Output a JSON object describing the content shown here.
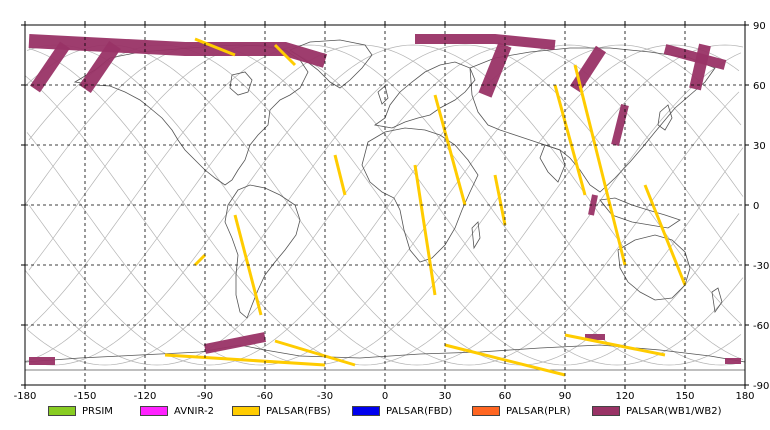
{
  "map": {
    "lon_ticks": [
      "-180",
      "-150",
      "-120",
      "-90",
      "-60",
      "-30",
      "0",
      "30",
      "60",
      "90",
      "120",
      "150",
      "180"
    ],
    "lat_ticks": [
      "90",
      "60",
      "30",
      "0",
      "-30",
      "-60",
      "-90"
    ],
    "lon_range": [
      -180,
      180
    ],
    "lat_range": [
      -90,
      90
    ],
    "grid": true,
    "colors": {
      "coastline": "#555555",
      "orbit_tracks": "#b4b4b4",
      "grid": "#000000",
      "frame": "#000000"
    }
  },
  "legend": {
    "items": [
      {
        "label": "PRSIM",
        "color": "#88cc22"
      },
      {
        "label": "AVNIR-2",
        "color": "#ff22ff"
      },
      {
        "label": "PALSAR(FBS)",
        "color": "#ffcc00"
      },
      {
        "label": "PALSAR(FBD)",
        "color": "#0000ee"
      },
      {
        "label": "PALSAR(PLR)",
        "color": "#ff6622"
      },
      {
        "label": "PALSAR(WB1/WB2)",
        "color": "#993366"
      }
    ]
  }
}
